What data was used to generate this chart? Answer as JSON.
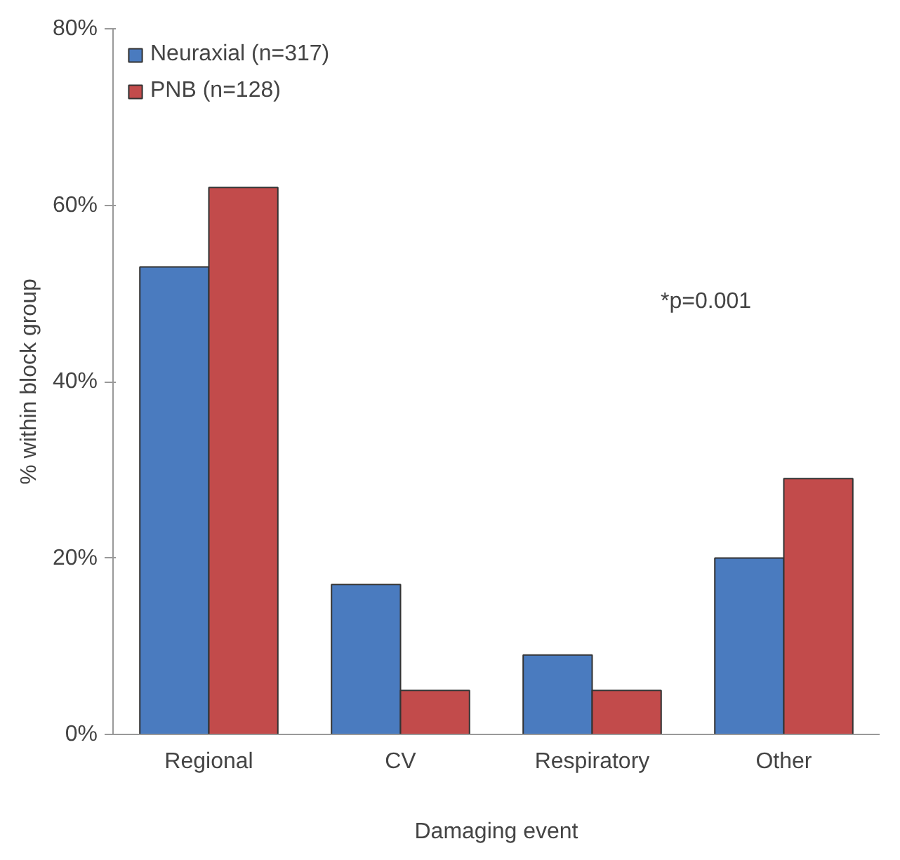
{
  "chart_data": {
    "type": "bar",
    "xlabel": "Damaging event",
    "ylabel": "% within block group",
    "categories": [
      "Regional",
      "CV",
      "Respiratory",
      "Other"
    ],
    "series": [
      {
        "name": "Neuraxial (n=317)",
        "color": "#4a7bbf",
        "values": [
          53,
          17,
          9,
          20
        ]
      },
      {
        "name": "PNB (n=128)",
        "color": "#c24b4b",
        "values": [
          62,
          5,
          5,
          29
        ]
      }
    ],
    "ylim": [
      0,
      80
    ],
    "yticks": [
      {
        "value": 0,
        "label": "0%"
      },
      {
        "value": 20,
        "label": "20%"
      },
      {
        "value": 40,
        "label": "40%"
      },
      {
        "value": 60,
        "label": "60%"
      },
      {
        "value": 80,
        "label": "80%"
      }
    ],
    "annotations": [
      "*p=0.001"
    ],
    "legend": "top left",
    "grid": false
  }
}
